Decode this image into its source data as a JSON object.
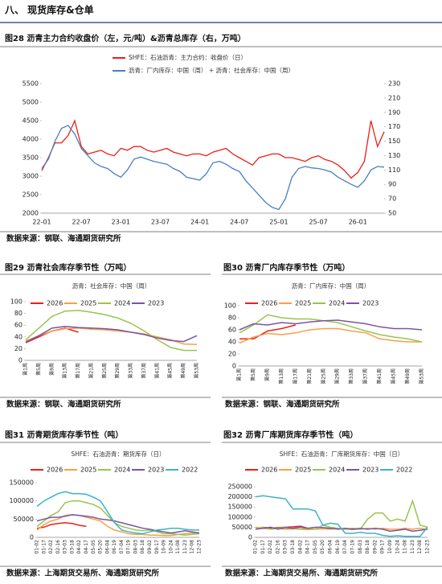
{
  "section_title": "八、 现货库存&仓单",
  "chart_data": [
    {
      "type": "line",
      "title": "图28  沥青主力合约收盘价（左，元/吨）&沥青总库存（右，万吨）",
      "source": "数据来源：钢联、海通期货研究所",
      "categories": [
        "22-01",
        null,
        null,
        null,
        null,
        null,
        "22-07",
        null,
        null,
        null,
        null,
        null,
        "23-01",
        null,
        null,
        null,
        null,
        null,
        "23-07",
        null,
        null,
        null,
        null,
        null,
        "24-01",
        null,
        null,
        null,
        null,
        null,
        "24-07",
        null,
        null,
        null,
        null,
        null,
        "25-01",
        null,
        null,
        null,
        null,
        null,
        "25-07",
        null,
        null,
        null,
        null,
        null,
        "26-01",
        null,
        null,
        null,
        null
      ],
      "ylim": [
        2000,
        5500
      ],
      "yticks": [
        2000,
        2500,
        3000,
        3500,
        4000,
        4500,
        5000,
        5500
      ],
      "y2lim": [
        50,
        230
      ],
      "y2ticks": [
        50,
        70,
        90,
        110,
        130,
        150,
        170,
        190,
        210,
        230
      ],
      "series": [
        {
          "name": "SHFE：石油沥青：主力合约：收盘价（日）",
          "color": "#e8211a",
          "values": [
            3150,
            3500,
            3900,
            3900,
            4100,
            4500,
            3800,
            3600,
            3650,
            3700,
            3600,
            3550,
            3750,
            3700,
            3800,
            3800,
            3700,
            3650,
            3700,
            3750,
            3650,
            3600,
            3550,
            3600,
            3600,
            3550,
            3650,
            3700,
            3750,
            3600,
            3500,
            3400,
            3300,
            3500,
            3550,
            3600,
            3600,
            3500,
            3500,
            3450,
            3400,
            3500,
            3550,
            3450,
            3400,
            3300,
            3150,
            2950,
            3100,
            3400,
            4500,
            3800,
            4200
          ]
        },
        {
          "name": "沥青：厂内库存：中国（周） + 沥青：社会库存：中国（周）",
          "color": "#4a7fc1",
          "axis": "y2",
          "values": [
            112,
            125,
            150,
            168,
            172,
            160,
            140,
            130,
            120,
            115,
            112,
            105,
            100,
            110,
            125,
            128,
            125,
            122,
            120,
            118,
            112,
            108,
            100,
            98,
            96,
            105,
            120,
            122,
            118,
            112,
            108,
            95,
            85,
            75,
            65,
            58,
            55,
            70,
            100,
            112,
            115,
            113,
            112,
            110,
            107,
            100,
            95,
            90,
            86,
            95,
            110,
            115,
            114
          ]
        }
      ]
    },
    {
      "type": "line",
      "title": "图29  沥青社会库存季节性（万吨）",
      "subtitle": "沥青：社会库存：中国（周）",
      "source": "数据来源：钢联、海通期货研究所",
      "categories": [
        "第1周",
        "第5周",
        "第9周",
        "第13周",
        "第17周",
        "第21周",
        "第25周",
        "第29周",
        "第33周",
        "第37周",
        "第41周",
        "第45周",
        "第49周",
        "第53周"
      ],
      "ylim": [
        0,
        100
      ],
      "yticks": [
        0,
        20,
        40,
        60,
        80,
        100
      ],
      "series": [
        {
          "name": "2026",
          "color": "#e8211a",
          "values": [
            30,
            40,
            50,
            55,
            48,
            null,
            null,
            null,
            null,
            null,
            null,
            null,
            null,
            null
          ]
        },
        {
          "name": "2025",
          "color": "#f5a04a",
          "values": [
            33,
            42,
            50,
            54,
            55,
            53,
            52,
            50,
            48,
            45,
            40,
            35,
            28,
            27
          ]
        },
        {
          "name": "2024",
          "color": "#9ac44e",
          "values": [
            35,
            55,
            75,
            84,
            85,
            82,
            78,
            72,
            63,
            50,
            35,
            22,
            17,
            17
          ]
        },
        {
          "name": "2023",
          "color": "#7a55a3",
          "values": [
            31,
            42,
            55,
            58,
            56,
            55,
            54,
            52,
            48,
            44,
            38,
            34,
            32,
            42
          ]
        }
      ]
    },
    {
      "type": "line",
      "title": "图30  沥青厂内库存季节性（万吨）",
      "subtitle": "沥青：厂内库存：中国（周）",
      "source": "数据来源：钢联、海通期货研究所",
      "categories": [
        "第1周",
        "第5周",
        "第9周",
        "第13周",
        "第17周",
        "第21周",
        "第25周",
        "第29周",
        "第33周",
        "第37周",
        "第41周",
        "第45周",
        "第49周",
        "第53周"
      ],
      "ylim": [
        0,
        100
      ],
      "yticks": [
        0,
        20,
        40,
        60,
        80,
        100
      ],
      "series": [
        {
          "name": "2026",
          "color": "#e8211a",
          "values": [
            45,
            45,
            58,
            62,
            68,
            null,
            null,
            null,
            null,
            null,
            null,
            null,
            null,
            null
          ]
        },
        {
          "name": "2025",
          "color": "#f5a04a",
          "values": [
            38,
            48,
            54,
            52,
            55,
            60,
            62,
            62,
            58,
            55,
            45,
            42,
            40,
            40
          ]
        },
        {
          "name": "2024",
          "color": "#9ac44e",
          "values": [
            55,
            68,
            85,
            80,
            78,
            78,
            75,
            72,
            65,
            58,
            52,
            48,
            45,
            40
          ]
        },
        {
          "name": "2023",
          "color": "#7a55a3",
          "values": [
            60,
            70,
            68,
            72,
            70,
            73,
            75,
            76,
            73,
            70,
            65,
            62,
            62,
            60
          ]
        }
      ]
    },
    {
      "type": "line",
      "title": "图31  沥青期货库存季节性（吨）",
      "subtitle": "SHFE：石油沥青：期货库存（日）",
      "source": "数据来源：上海期货交易所、海通期货研究所",
      "categories": [
        "01-02",
        "01-17",
        "02-02",
        "02-16",
        "03-03",
        "03-18",
        "04-02",
        "04-17",
        "05-05",
        "05-20",
        "06-04",
        "06-19",
        "07-04",
        "07-19",
        "08-03",
        "08-18",
        "09-02",
        "09-17",
        "10-09",
        "10-24",
        "11-08",
        "11-23",
        "12-08",
        "12-23"
      ],
      "ylim": [
        0,
        150000
      ],
      "yticks": [
        0,
        50000,
        100000,
        150000
      ],
      "series": [
        {
          "name": "2026",
          "color": "#e8211a",
          "values": [
            25000,
            28000,
            35000,
            38000,
            40000,
            38000,
            33000,
            30000,
            null,
            null,
            null,
            null,
            null,
            null,
            null,
            null,
            null,
            null,
            null,
            null,
            null,
            null,
            null,
            null
          ]
        },
        {
          "name": "2025",
          "color": "#f5a04a",
          "values": [
            20000,
            35000,
            45000,
            50000,
            60000,
            62000,
            60000,
            55000,
            50000,
            45000,
            30000,
            20000,
            15000,
            10000,
            8000,
            8000,
            6000,
            6000,
            5000,
            5000,
            8000,
            10000,
            12000,
            12000
          ]
        },
        {
          "name": "2024",
          "color": "#9ac44e",
          "values": [
            30000,
            45000,
            60000,
            70000,
            95000,
            100000,
            100000,
            95000,
            90000,
            80000,
            60000,
            40000,
            30000,
            25000,
            20000,
            18000,
            20000,
            15000,
            10000,
            10000,
            8000,
            6000,
            8000,
            10000
          ]
        },
        {
          "name": "2023",
          "color": "#7a55a3",
          "values": [
            45000,
            50000,
            55000,
            55000,
            58000,
            62000,
            60000,
            58000,
            55000,
            50000,
            48000,
            45000,
            40000,
            35000,
            30000,
            25000,
            22000,
            18000,
            15000,
            12000,
            15000,
            18000,
            15000,
            12000
          ]
        },
        {
          "name": "2022",
          "color": "#3cb3c8",
          "values": [
            85000,
            100000,
            110000,
            120000,
            125000,
            120000,
            120000,
            118000,
            110000,
            100000,
            70000,
            40000,
            20000,
            15000,
            12000,
            10000,
            15000,
            20000,
            22000,
            25000,
            25000,
            22000,
            20000,
            20000
          ]
        }
      ]
    },
    {
      "type": "line",
      "title": "图32  沥青厂库期货库存季节性（吨）",
      "subtitle": "SHFE：石油沥青：厂库期货库存：中国（日）",
      "source": "数据来源：上海期货交易所、海通期货研究所",
      "categories": [
        "01-02",
        "01-17",
        "02-02",
        "02-16",
        "03-03",
        "03-18",
        "04-02",
        "04-17",
        "05-05",
        "05-20",
        "06-04",
        "06-19",
        "07-04",
        "07-19",
        "08-03",
        "08-18",
        "09-02",
        "09-17",
        "10-09",
        "10-24",
        "11-08",
        "11-23",
        "12-08",
        "12-23"
      ],
      "ylim": [
        0,
        250000
      ],
      "yticks": [
        0,
        50000,
        100000,
        150000,
        200000,
        250000
      ],
      "series": [
        {
          "name": "2026",
          "color": "#e8211a",
          "values": [
            40000,
            50000,
            45000,
            48000,
            50000,
            52000,
            55000,
            45000,
            null,
            null,
            null,
            null,
            null,
            null,
            null,
            null,
            null,
            null,
            null,
            null,
            null,
            null,
            null,
            null
          ]
        },
        {
          "name": "2025",
          "color": "#f5a04a",
          "values": [
            50000,
            45000,
            40000,
            45000,
            40000,
            42000,
            40000,
            38000,
            40000,
            42000,
            40000,
            45000,
            40000,
            38000,
            40000,
            45000,
            40000,
            45000,
            40000,
            40000,
            45000,
            40000,
            45000,
            40000
          ]
        },
        {
          "name": "2024",
          "color": "#9ac44e",
          "values": [
            40000,
            50000,
            40000,
            45000,
            50000,
            45000,
            40000,
            45000,
            40000,
            60000,
            50000,
            45000,
            40000,
            45000,
            40000,
            90000,
            120000,
            120000,
            80000,
            90000,
            80000,
            180000,
            60000,
            50000
          ]
        },
        {
          "name": "2023",
          "color": "#7a55a3",
          "values": [
            40000,
            45000,
            50000,
            40000,
            48000,
            45000,
            50000,
            45000,
            50000,
            48000,
            45000,
            40000,
            45000,
            40000,
            45000,
            40000,
            45000,
            40000,
            30000,
            35000,
            40000,
            30000,
            35000,
            40000
          ]
        },
        {
          "name": "2022",
          "color": "#3cb3c8",
          "values": [
            200000,
            205000,
            200000,
            195000,
            190000,
            140000,
            140000,
            140000,
            130000,
            60000,
            70000,
            65000,
            20000,
            20000,
            25000,
            20000,
            20000,
            10000,
            5000,
            8000,
            5000,
            5000,
            5000,
            50000
          ]
        }
      ]
    }
  ]
}
